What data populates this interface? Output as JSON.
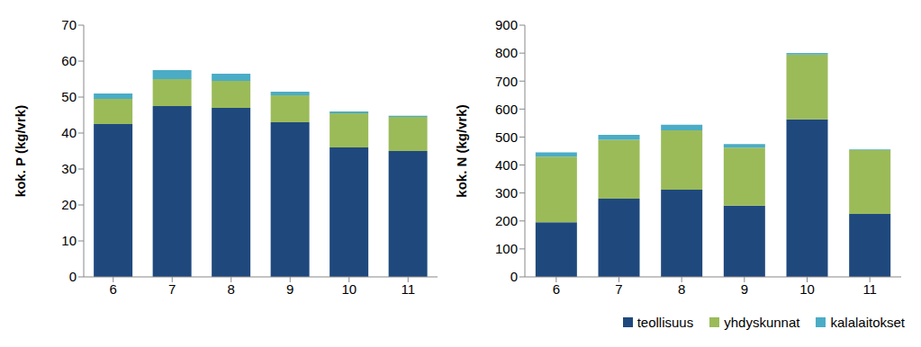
{
  "chart_data": [
    {
      "type": "bar",
      "stacked": true,
      "y_label": "kok. P (kg/vrk)",
      "categories": [
        "6",
        "7",
        "8",
        "9",
        "10",
        "11"
      ],
      "ylim": [
        0,
        70
      ],
      "yticks": [
        0,
        10,
        20,
        30,
        40,
        50,
        60,
        70
      ],
      "grid": false,
      "series": [
        {
          "name": "teollisuus",
          "color": "#1f497d",
          "values": [
            42.5,
            47.5,
            47,
            43,
            36,
            35
          ]
        },
        {
          "name": "yhdyskunnat",
          "color": "#9bbb59",
          "values": [
            7,
            7.5,
            7.5,
            7.5,
            9.5,
            9.5
          ]
        },
        {
          "name": "kalalaitokset",
          "color": "#4bacc6",
          "values": [
            1.5,
            2.5,
            2,
            1,
            0.5,
            0.3
          ]
        }
      ]
    },
    {
      "type": "bar",
      "stacked": true,
      "y_label": "kok. N (kg/vrk)",
      "legend": "bottom right",
      "categories": [
        "6",
        "7",
        "8",
        "9",
        "10",
        "11"
      ],
      "ylim": [
        0,
        900
      ],
      "yticks": [
        0,
        100,
        200,
        300,
        400,
        500,
        600,
        700,
        800,
        900
      ],
      "grid": false,
      "series": [
        {
          "name": "teollisuus",
          "color": "#1f497d",
          "values": [
            195,
            280,
            312,
            255,
            563,
            225
          ]
        },
        {
          "name": "yhdyskunnat",
          "color": "#9bbb59",
          "values": [
            235,
            210,
            212,
            207,
            232,
            228
          ]
        },
        {
          "name": "kalalaitokset",
          "color": "#4bacc6",
          "values": [
            15,
            18,
            20,
            13,
            5,
            3
          ]
        }
      ]
    }
  ]
}
